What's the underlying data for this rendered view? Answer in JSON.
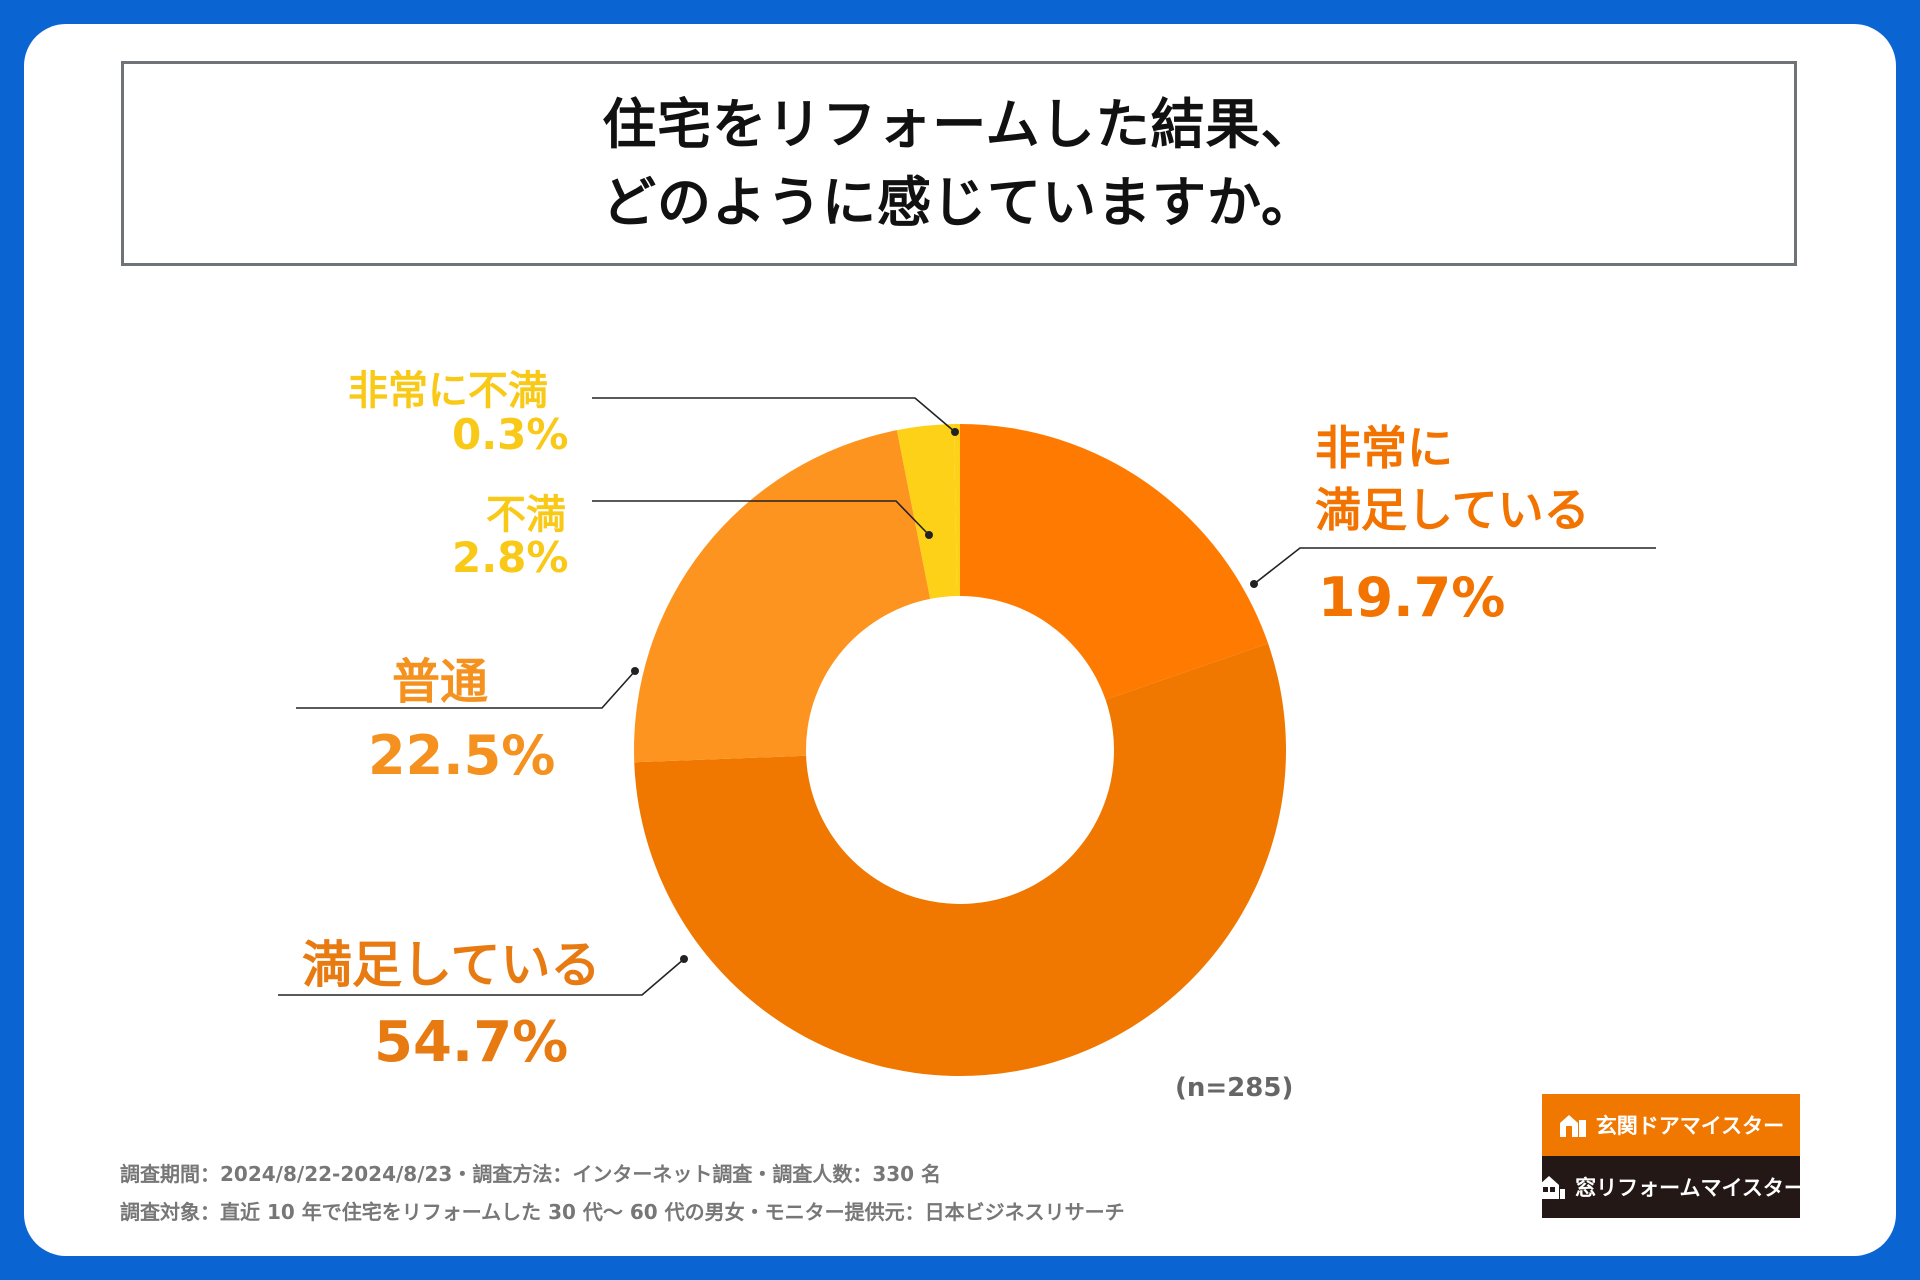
{
  "title": {
    "line1": "住宅をリフォームした結果、",
    "line2": "どのように感じていますか。"
  },
  "chart_data": {
    "type": "pie",
    "style": "donut",
    "title": "住宅をリフォームした結果、どのように感じていますか。",
    "categories": [
      "非常に満足している",
      "満足している",
      "普通",
      "不満",
      "非常に不満"
    ],
    "values": [
      19.7,
      54.7,
      22.5,
      2.8,
      0.3
    ],
    "colors": [
      "#ff7a00",
      "#f07800",
      "#fd9420",
      "#fdd117",
      "#fdd117"
    ],
    "unit": "%",
    "sample_note": "(n=285)"
  },
  "labels": {
    "very_satisfied": {
      "line1": "非常に",
      "line2": "満足している",
      "value": "19.7%",
      "color": "#f27300"
    },
    "satisfied": {
      "name": "満足している",
      "value": "54.7%",
      "color": "#e87a12"
    },
    "neutral": {
      "name": "普通",
      "value": "22.5%",
      "color": "#f5911e"
    },
    "dissatisfied": {
      "name": "不満",
      "value": "2.8%",
      "color": "#f9c917"
    },
    "very_dissatisfied": {
      "name": "非常に不満",
      "value": "0.3%",
      "color": "#f9c917"
    }
  },
  "footer": {
    "line1": "調査期間：2024/8/22-2024/8/23・調査方法：インターネット調査・調査人数：330 名",
    "line2": "調査対象：直近 10 年で住宅をリフォームした 30 代～ 60 代の男女・モニター提供元：日本ビジネスリサーチ"
  },
  "logos": {
    "door": {
      "text": "玄関ドアマイスター",
      "bg": "#f07800",
      "icon": "house-door-icon"
    },
    "window": {
      "text": "窓リフォームマイスター",
      "bg": "#231815",
      "icon": "house-window-icon"
    }
  }
}
